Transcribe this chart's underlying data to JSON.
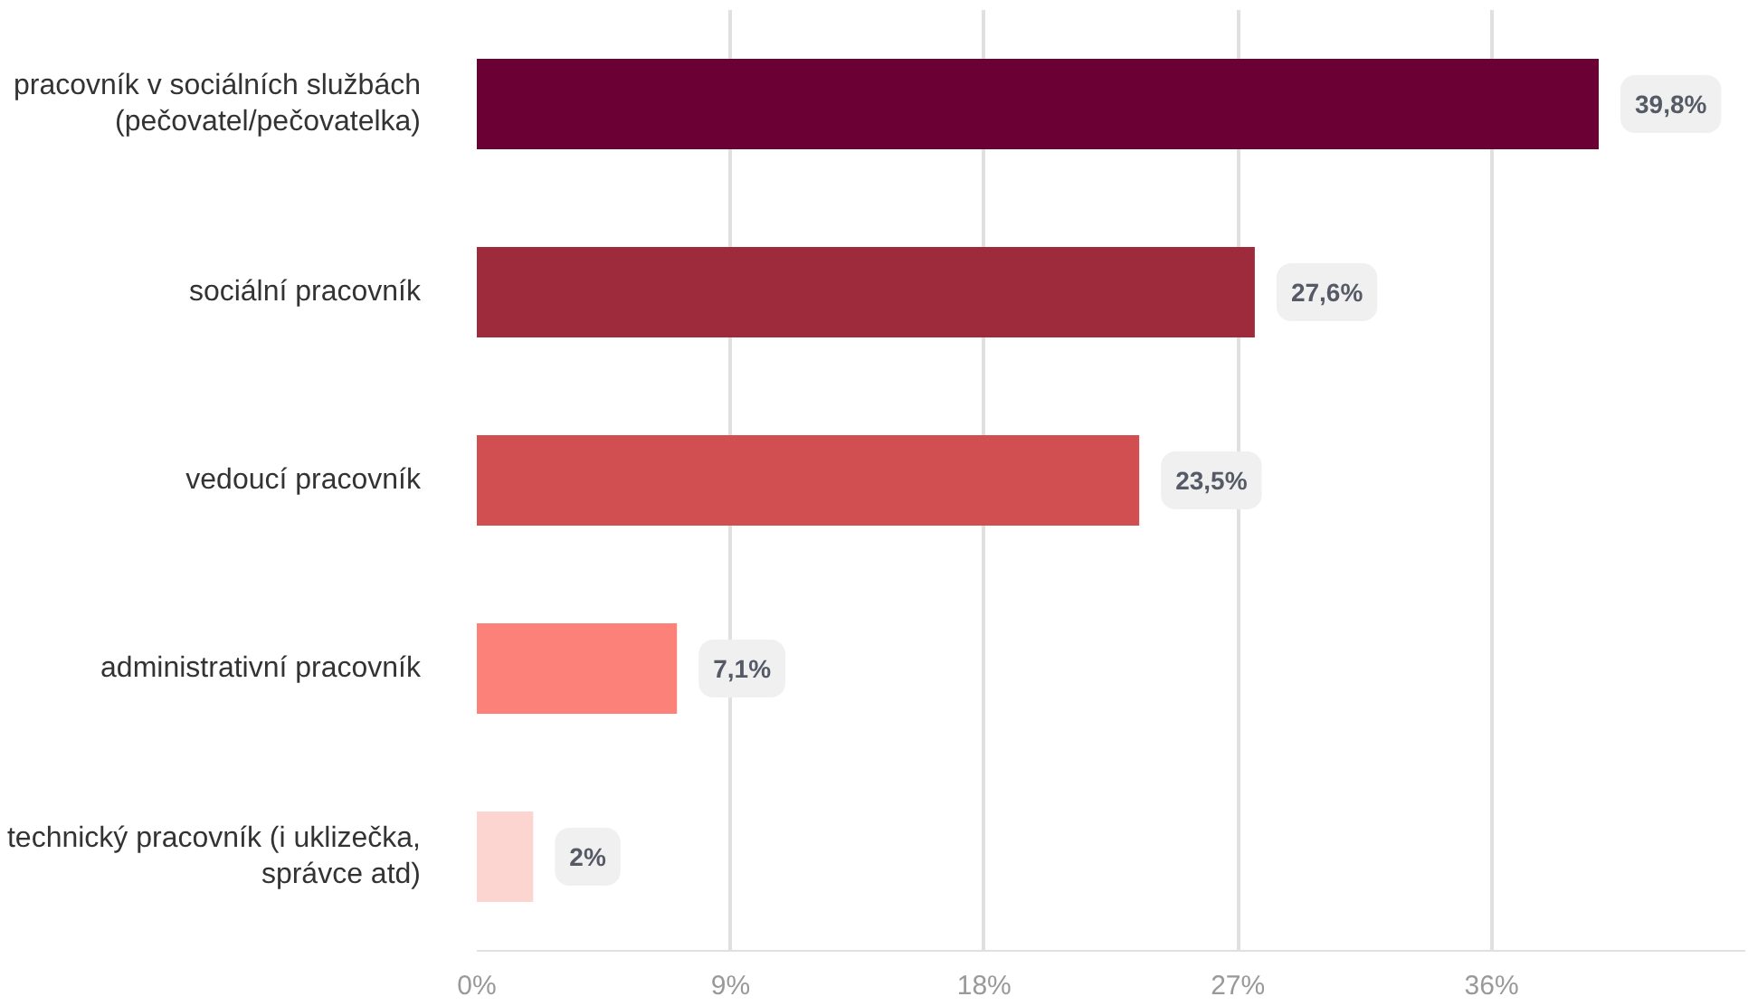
{
  "chart_data": {
    "type": "bar",
    "orientation": "horizontal",
    "categories": [
      "pracovník v sociálních službách\n(pečovatel/pečovatelka)",
      "sociální pracovník",
      "vedoucí pracovník",
      "administrativní pracovník",
      "technický pracovník (i uklizečka,\nsprávce atd)"
    ],
    "values": [
      39.8,
      27.6,
      23.5,
      7.1,
      2
    ],
    "value_labels": [
      "39,8%",
      "27,6%",
      "23,5%",
      "7,1%",
      "2%"
    ],
    "colors": [
      "#6b0035",
      "#9e2b3c",
      "#d14f50",
      "#fb8179",
      "#fdd5d0"
    ],
    "xlim": [
      0,
      45
    ],
    "xticks": [
      {
        "value": 0,
        "label": "0%"
      },
      {
        "value": 9,
        "label": "9%"
      },
      {
        "value": 18,
        "label": "18%"
      },
      {
        "value": 27,
        "label": "27%"
      },
      {
        "value": 36,
        "label": "36%"
      }
    ],
    "grid": "x"
  }
}
